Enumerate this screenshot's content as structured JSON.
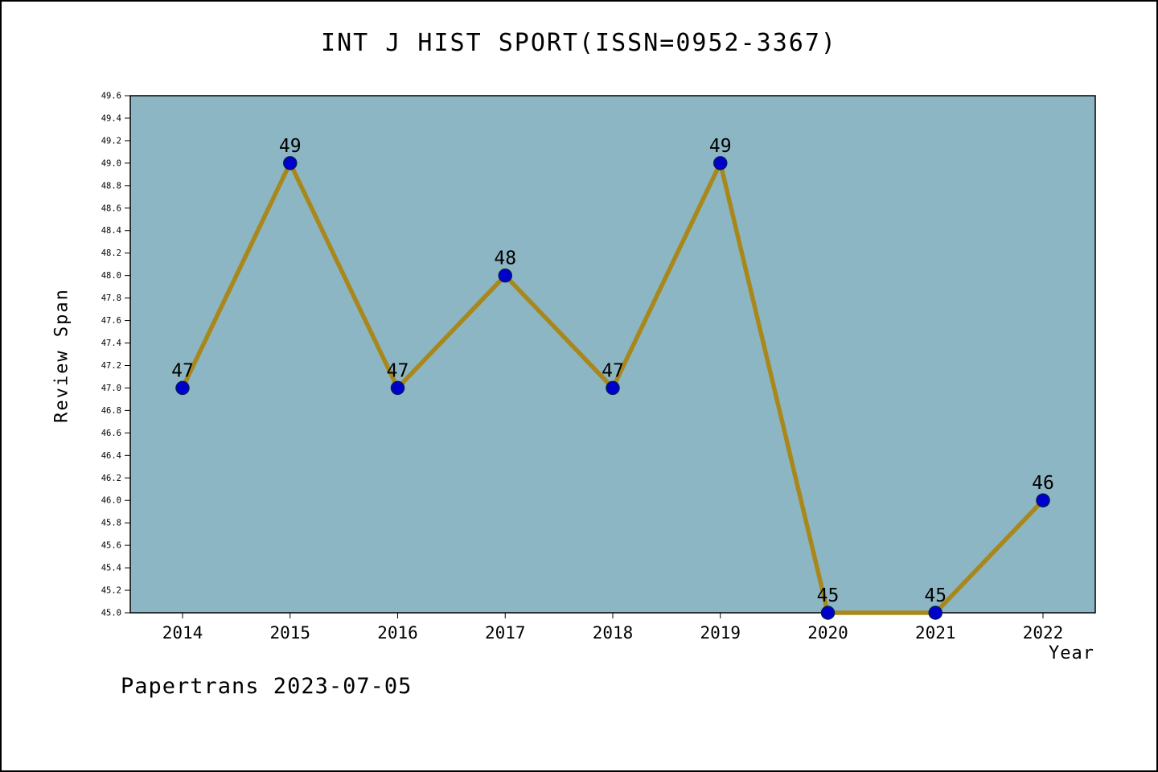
{
  "footer": "Papertrans 2023-07-05",
  "chart_data": {
    "type": "line",
    "title": "INT J HIST SPORT(ISSN=0952-3367)",
    "xlabel": "Year",
    "ylabel": "Review Span",
    "categories": [
      "2014",
      "2015",
      "2016",
      "2017",
      "2018",
      "2019",
      "2020",
      "2021",
      "2022"
    ],
    "values": [
      47,
      49,
      47,
      48,
      47,
      49,
      45,
      45,
      46
    ],
    "ylim": [
      45.0,
      49.6
    ],
    "ytick_step": 0.2,
    "grid": false,
    "legend": "none",
    "colors": {
      "plot_bg": "#8db6c4",
      "line": "#a8881c",
      "marker": "#0000cc",
      "marker_edge": "#001a66",
      "axis": "#000000"
    }
  }
}
